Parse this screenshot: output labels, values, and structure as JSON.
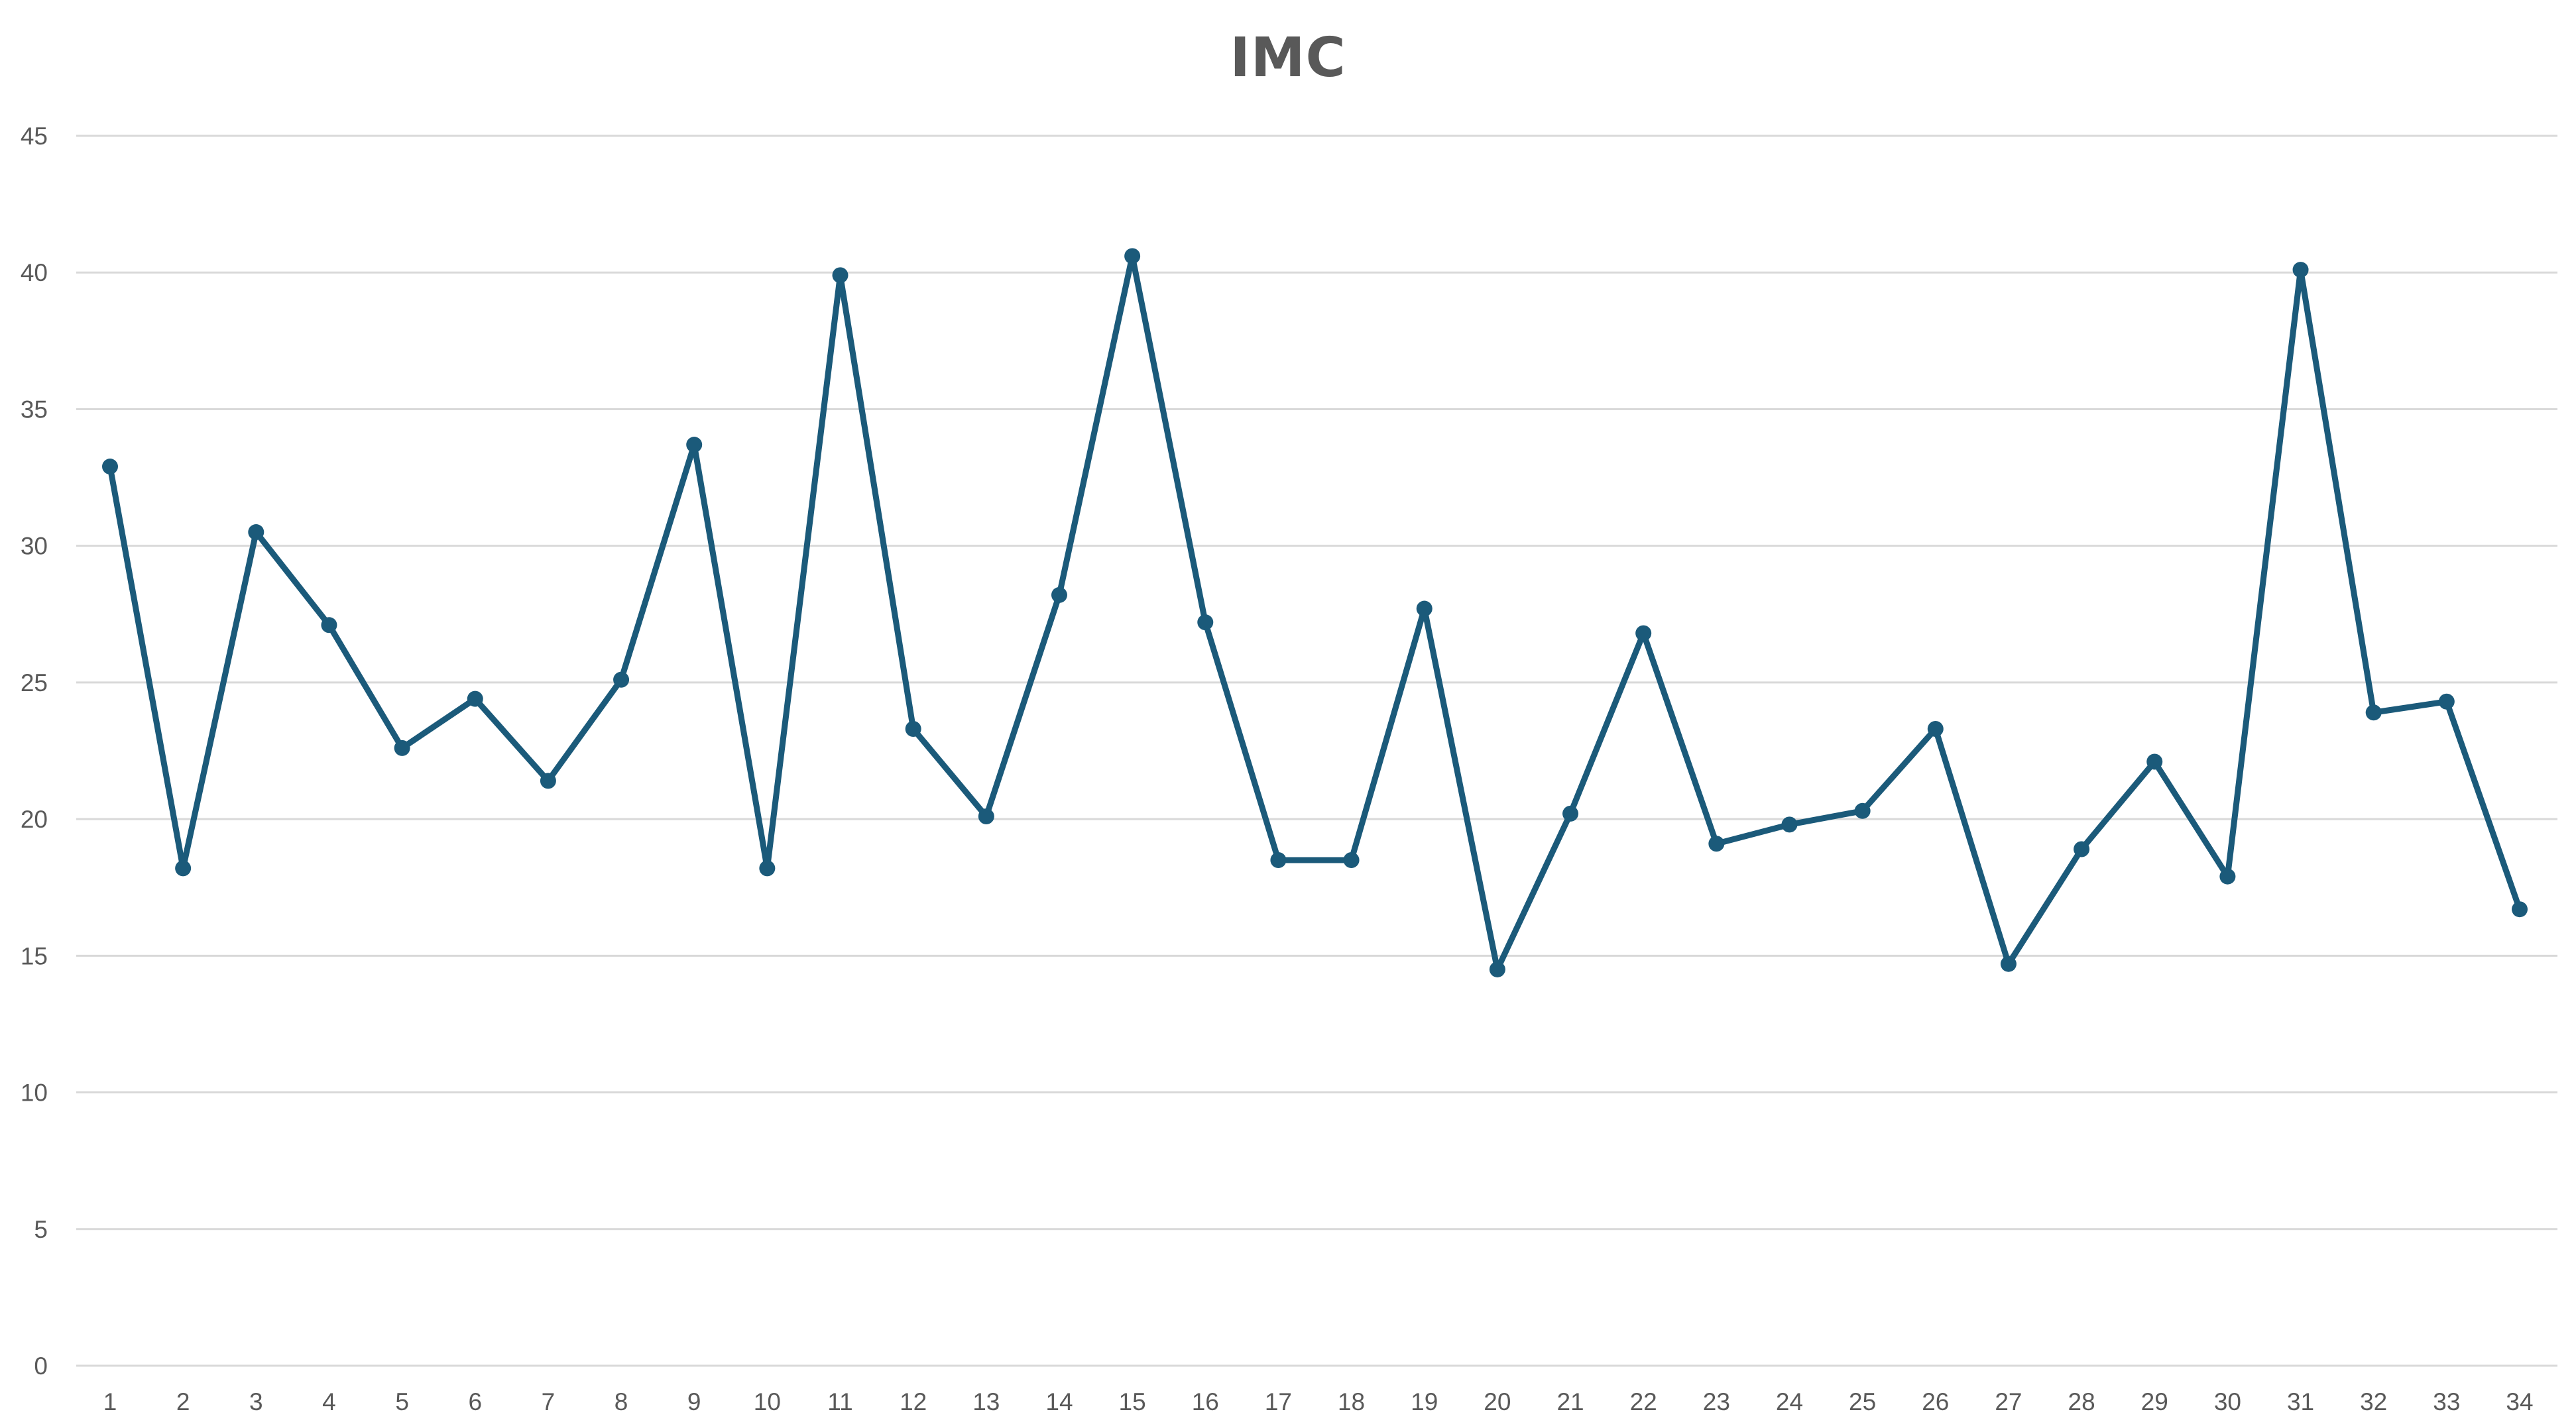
{
  "chart_data": {
    "type": "line",
    "title": "IMC",
    "xlabel": "",
    "ylabel": "",
    "categories": [
      "1",
      "2",
      "3",
      "4",
      "5",
      "6",
      "7",
      "8",
      "9",
      "10",
      "11",
      "12",
      "13",
      "14",
      "15",
      "16",
      "17",
      "18",
      "19",
      "20",
      "21",
      "22",
      "23",
      "24",
      "25",
      "26",
      "27",
      "28",
      "29",
      "30",
      "31",
      "32",
      "33",
      "34"
    ],
    "series": [
      {
        "values": [
          32.9,
          18.2,
          30.5,
          27.1,
          22.6,
          24.4,
          21.4,
          25.1,
          33.7,
          18.2,
          39.9,
          23.3,
          20.1,
          28.2,
          40.6,
          27.2,
          18.5,
          18.5,
          27.7,
          14.5,
          20.2,
          26.8,
          19.1,
          19.8,
          20.3,
          23.3,
          14.7,
          18.9,
          22.1,
          17.9,
          40.1,
          23.9,
          24.3,
          16.7
        ],
        "color": "#1b5a7a"
      }
    ],
    "ylim": [
      0,
      45
    ],
    "yticks": [
      0,
      5,
      10,
      15,
      20,
      25,
      30,
      35,
      40,
      45
    ],
    "grid": true,
    "legend": "none",
    "marker": "circle"
  }
}
